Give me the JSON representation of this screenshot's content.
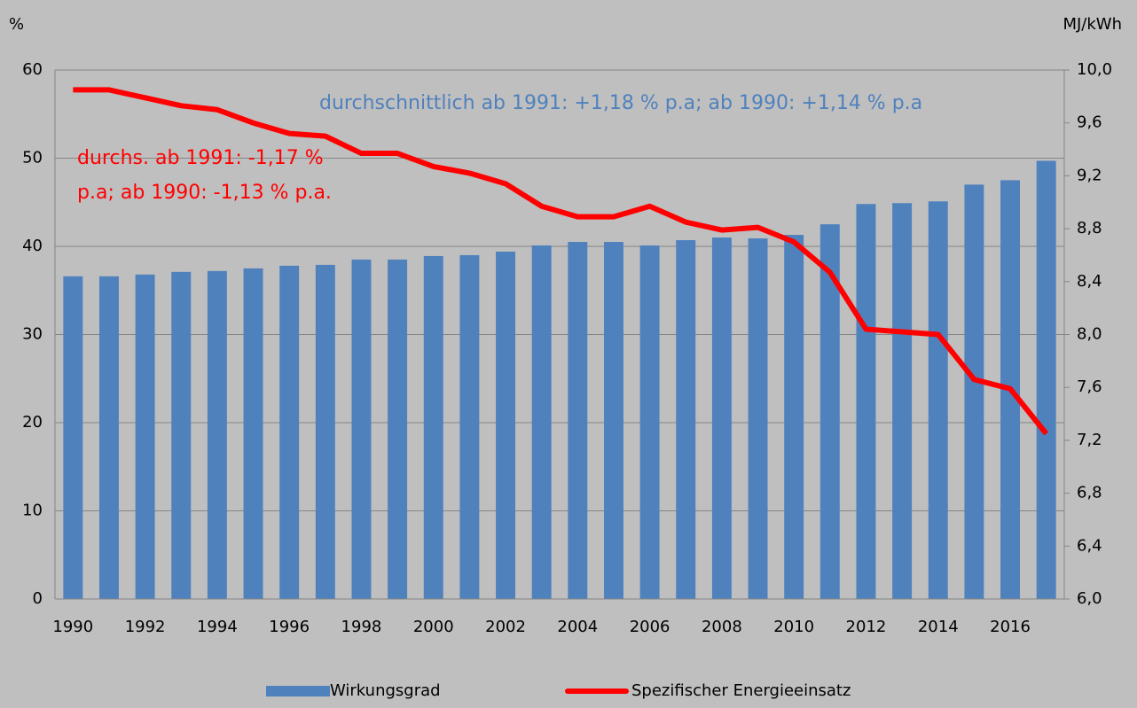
{
  "chart_data": {
    "type": "bar",
    "categories": [
      "1990",
      null,
      "1992",
      null,
      "1994",
      null,
      "1996",
      null,
      "1998",
      null,
      "2000",
      null,
      "2002",
      null,
      "2004",
      null,
      "2006",
      null,
      "2008",
      null,
      "2010",
      null,
      "2012",
      null,
      "2014",
      null,
      "2016",
      null
    ],
    "series": [
      {
        "name": "Wirkungsgrad",
        "type": "bar",
        "color": "#4f81bd",
        "values": [
          36.6,
          36.6,
          36.8,
          37.1,
          37.2,
          37.5,
          37.8,
          37.9,
          38.5,
          38.5,
          38.9,
          39.0,
          39.4,
          40.1,
          40.5,
          40.5,
          40.1,
          40.7,
          41.0,
          40.9,
          41.3,
          42.5,
          44.8,
          44.9,
          45.1,
          47.0,
          47.5,
          49.7
        ]
      },
      {
        "name": "Spezifischer Energieeinsatz",
        "type": "line",
        "axis": "y2",
        "color": "#ff0000",
        "values": [
          9.85,
          9.85,
          9.79,
          9.73,
          9.7,
          9.6,
          9.52,
          9.5,
          9.37,
          9.37,
          9.27,
          9.22,
          9.14,
          8.97,
          8.89,
          8.89,
          8.97,
          8.85,
          8.79,
          8.81,
          8.7,
          8.47,
          8.04,
          8.02,
          8.0,
          7.66,
          7.59,
          7.25
        ]
      }
    ],
    "y_label": "%",
    "y2_label": "MJ/kWh",
    "ylim": [
      0,
      60
    ],
    "yticks": [
      0,
      10,
      20,
      30,
      40,
      50,
      60
    ],
    "y2lim": [
      6,
      10
    ],
    "y2ticks": [
      {
        "value": 6,
        "label": "6,0"
      },
      {
        "value": 6.4,
        "label": "6,4"
      },
      {
        "value": 6.8,
        "label": "6,8"
      },
      {
        "value": 7.2,
        "label": "7,2"
      },
      {
        "value": 7.6,
        "label": "7,6"
      },
      {
        "value": 8,
        "label": "8,0"
      },
      {
        "value": 8.4,
        "label": "8,4"
      },
      {
        "value": 8.8,
        "label": "8,8"
      },
      {
        "value": 9.2,
        "label": "9,2"
      },
      {
        "value": 9.6,
        "label": "9,6"
      },
      {
        "value": 10,
        "label": "10,0"
      }
    ],
    "grid": true,
    "legend": "bottom",
    "annotations": [
      {
        "text": "durchschnittlich ab 1991:  +1,18 % p.a; ab 1990: +1,14 % p.a",
        "color": "#4f81bd"
      },
      {
        "lines": [
          "durchs. ab 1991:  -1,17 %",
          "p.a; ab 1990: -1,13 % p.a."
        ],
        "color": "#ff0000"
      }
    ]
  }
}
